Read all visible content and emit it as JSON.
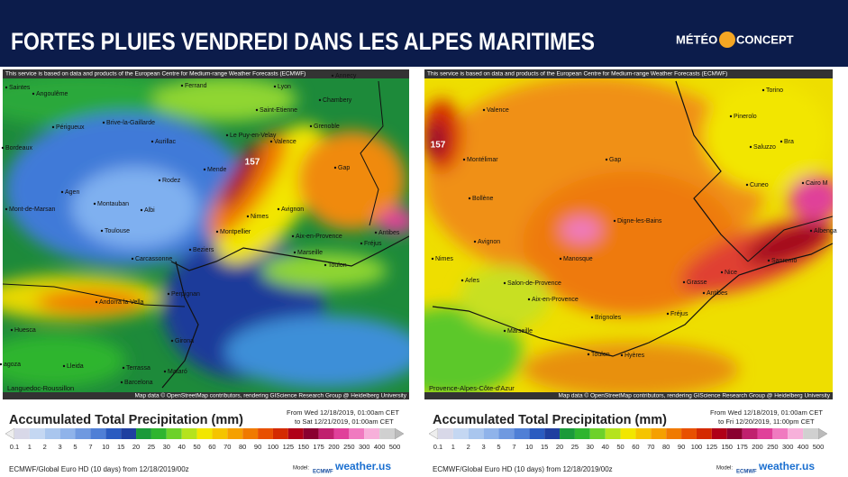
{
  "header": {
    "title": "FORTES PLUIES VENDREDI DANS LES ALPES MARITIMES",
    "logo": {
      "part1": "MÉTÉO",
      "part2": "CONCEPT"
    }
  },
  "panels": [
    {
      "attribution_top": "This service is based on data and products of the European Centre for Medium-range Weather Forecasts (ECMWF)",
      "attribution_bottom": "Map data © OpenStreetMap contributors, rendering GIScience Research Group @ Heidelberg University",
      "region": "Languedoc-Roussillon",
      "peak": "157",
      "cities": [
        "Saintes",
        "Angoulême",
        "Ferrand",
        "Lyon",
        "Annecy",
        "Chambery",
        "Saint-Etienne",
        "Grenoble",
        "Périgueux",
        "Brive-la-Gaillarde",
        "Aurillac",
        "Le Puy-en-Velay",
        "Valence",
        "Bordeaux",
        "Mende",
        "Rodez",
        "Gap",
        "Agen",
        "Montauban",
        "Albi",
        "Mont-de-Marsan",
        "Toulouse",
        "Nimes",
        "Avignon",
        "Montpellier",
        "Beziers",
        "Aix-en-Provence",
        "Marseille",
        "Toulon",
        "Antibes",
        "Fréjus",
        "Carcassonne",
        "Perpignan",
        "Andorra la Vella",
        "Huesca",
        "Girona",
        "Lleida",
        "Terrassa",
        "Barcelona",
        "Mataró",
        "agoza"
      ],
      "legend": {
        "title": "Accumulated Total Precipitation (mm)",
        "from": "From Wed 12/18/2019, 01:00am CET",
        "to": "to Sat 12/21/2019, 01:00am CET",
        "model_run": "ECMWF/Global Euro HD (10 days) from 12/18/2019/00z",
        "model_label": "Model:",
        "model_name": "ECMWF",
        "brand": "weather.us"
      }
    },
    {
      "attribution_top": "This service is based on data and products of the European Centre for Medium-range Weather Forecasts (ECMWF)",
      "attribution_bottom": "Map data © OpenStreetMap contributors, rendering GIScience Research Group @ Heidelberg University",
      "region": "Provence-Alpes-Côte-d'Azur",
      "peak": "157",
      "cities": [
        "Valence",
        "Montélimar",
        "Gap",
        "Digne-les-Bains",
        "Manosque",
        "Bollène",
        "Avignon",
        "Nimes",
        "Arles",
        "Salon-de-Provence",
        "Aix-en-Provence",
        "Marseille",
        "Brignoles",
        "Toulon",
        "Hyères",
        "Fréjus",
        "Grasse",
        "Nice",
        "Antibes",
        "Sanremo",
        "Albenga",
        "Cuneo",
        "Saluzzo",
        "Pinerolo",
        "Torino",
        "Bra",
        "Cairo M"
      ],
      "legend": {
        "title": "Accumulated Total Precipitation (mm)",
        "from": "From Wed 12/18/2019, 01:00am CET",
        "to": "to Fri 12/20/2019, 11:00pm CET",
        "model_run": "ECMWF/Global Euro HD (10 days) from 12/18/2019/00z",
        "model_label": "Model:",
        "model_name": "ECMWF",
        "brand": "weather.us"
      }
    }
  ],
  "scale": {
    "labels": [
      "0.1",
      "1",
      "2",
      "3",
      "5",
      "7",
      "10",
      "15",
      "20",
      "25",
      "30",
      "40",
      "50",
      "60",
      "70",
      "80",
      "90",
      "100",
      "125",
      "150",
      "175",
      "200",
      "250",
      "300",
      "400",
      "500"
    ],
    "colors": [
      "#d8d8e8",
      "#c4d7f2",
      "#a9c6ee",
      "#8fb3ea",
      "#6f99e0",
      "#4f7fd6",
      "#2a5bc0",
      "#1f3fa0",
      "#1a9a3a",
      "#2fb52f",
      "#6dd12a",
      "#b5e31d",
      "#f2e600",
      "#f5c400",
      "#f5a000",
      "#f07a00",
      "#e85000",
      "#d42a00",
      "#b00018",
      "#8a0030",
      "#c0206e",
      "#e0409a",
      "#f07ac0",
      "#f7b0da",
      "#d0d0d0"
    ]
  }
}
